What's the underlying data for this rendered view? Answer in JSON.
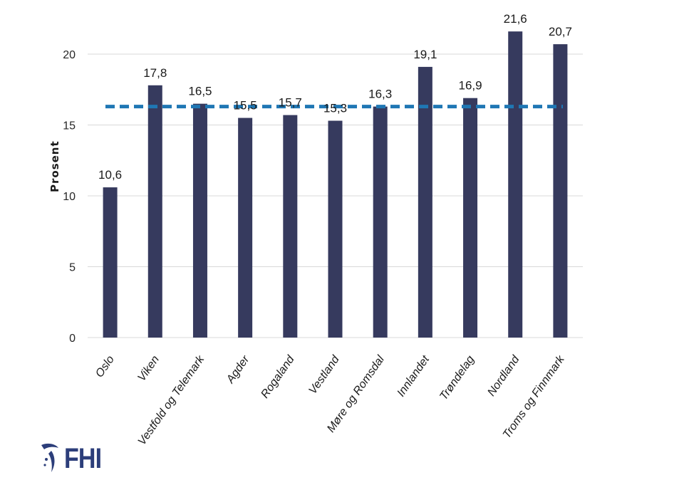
{
  "chart_data": {
    "type": "bar",
    "title": "",
    "xlabel": "",
    "ylabel": "Prosent",
    "ylim": [
      0,
      22
    ],
    "yticks": [
      0,
      5,
      10,
      15,
      20
    ],
    "grid": true,
    "categories": [
      "Oslo",
      "Viken",
      "Vestfold og Telemark",
      "Agder",
      "Rogaland",
      "Vestland",
      "Møre og Romsdal",
      "Innlandet",
      "Trøndelag",
      "Nordland",
      "Troms og Finnmark"
    ],
    "values": [
      10.6,
      17.8,
      16.5,
      15.5,
      15.7,
      15.3,
      16.3,
      19.1,
      16.9,
      21.6,
      20.7
    ],
    "value_labels": [
      "10,6",
      "17,8",
      "16,5",
      "15,5",
      "15,7",
      "15,3",
      "16,3",
      "19,1",
      "16,9",
      "21,6",
      "20,7"
    ],
    "reference_line": {
      "value": 16.3,
      "style": "dashed",
      "color": "#1f77b4"
    },
    "bar_color": "#363a5e",
    "grid_color": "#d9d9d9"
  },
  "logo": {
    "text": "FHI",
    "icon": "fhi-figure-icon",
    "color": "#2c3e7a"
  }
}
